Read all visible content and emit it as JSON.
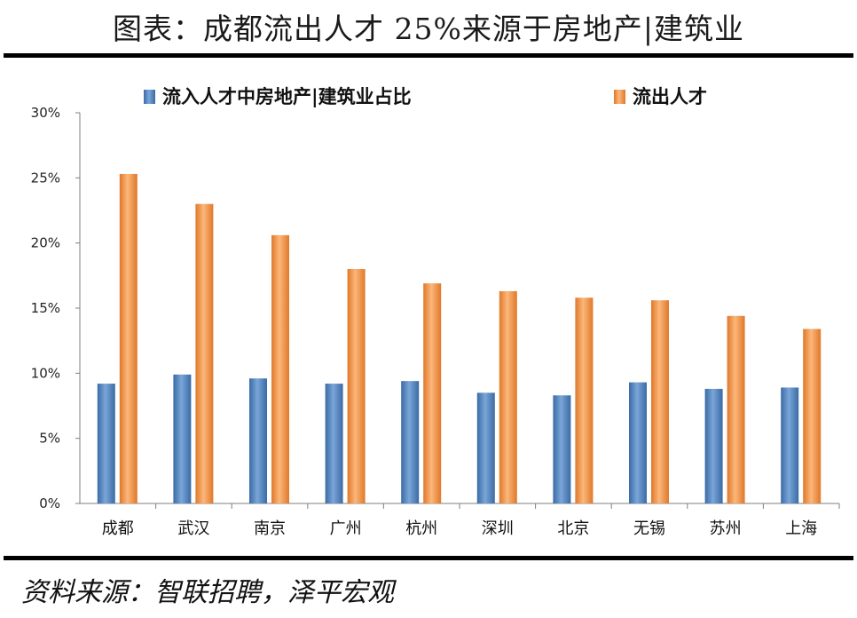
{
  "page": {
    "title": "图表：成都流出人才 25%来源于房地产|建筑业",
    "source": "资料来源：智联招聘，泽平宏观"
  },
  "colors": {
    "inflow": "#4f81bd",
    "outflow": "#f79646"
  },
  "chart_data": {
    "type": "bar",
    "categories": [
      "成都",
      "武汉",
      "南京",
      "广州",
      "杭州",
      "深圳",
      "北京",
      "无锡",
      "苏州",
      "上海"
    ],
    "series": [
      {
        "name": "流入人才中房地产|建筑业占比",
        "values": [
          9.2,
          9.9,
          9.6,
          9.2,
          9.4,
          8.5,
          8.3,
          9.3,
          8.8,
          8.9
        ]
      },
      {
        "name": "流出人才",
        "values": [
          25.3,
          23.0,
          20.6,
          18.0,
          16.9,
          16.3,
          15.8,
          15.6,
          14.4,
          13.4
        ]
      }
    ],
    "y_ticks": [
      "0%",
      "5%",
      "10%",
      "15%",
      "20%",
      "25%",
      "30%"
    ],
    "ylim": [
      0,
      30
    ],
    "legend_position": "top",
    "grid": false
  }
}
